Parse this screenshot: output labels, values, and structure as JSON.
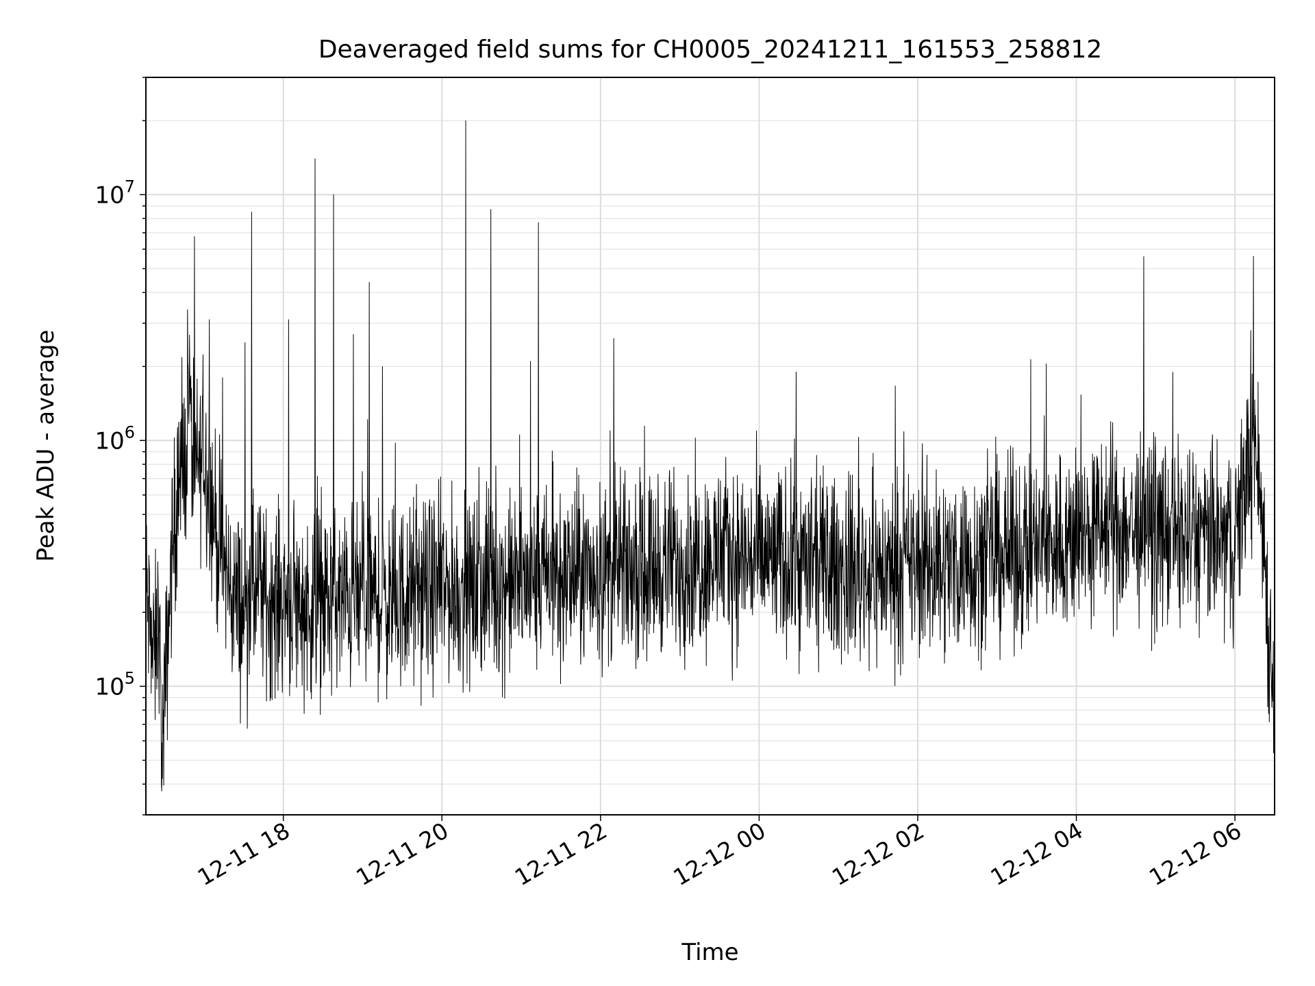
{
  "chart_data": {
    "type": "line",
    "title": "Deaveraged field sums for CH0005_20241211_161553_258812",
    "xlabel": "Time",
    "ylabel": "Peak ADU - average",
    "yscale": "log",
    "ylim": [
      30000,
      30000000
    ],
    "xlim": [
      "2024-12-11 16:16",
      "2024-12-12 06:30"
    ],
    "grid": true,
    "line_color": "#000000",
    "x_ticks": [
      {
        "t": "2024-12-11 18:00",
        "label": "12-11 18"
      },
      {
        "t": "2024-12-11 20:00",
        "label": "12-11 20"
      },
      {
        "t": "2024-12-11 22:00",
        "label": "12-11 22"
      },
      {
        "t": "2024-12-12 00:00",
        "label": "12-12 00"
      },
      {
        "t": "2024-12-12 02:00",
        "label": "12-12 02"
      },
      {
        "t": "2024-12-12 04:00",
        "label": "12-12 04"
      },
      {
        "t": "2024-12-12 06:00",
        "label": "12-12 06"
      }
    ],
    "y_ticks": [
      {
        "value": 100000,
        "base": "10",
        "exp": "5"
      },
      {
        "value": 1000000,
        "base": "10",
        "exp": "6"
      },
      {
        "value": 10000000,
        "base": "10",
        "exp": "7"
      }
    ],
    "series": [
      {
        "points": [
          [
            "2024-12-11 16:16",
            250000
          ],
          [
            "2024-12-11 16:22",
            120000
          ],
          [
            "2024-12-11 16:26",
            200000
          ],
          [
            "2024-12-11 16:28",
            47000
          ],
          [
            "2024-12-11 16:35",
            300000
          ],
          [
            "2024-12-11 16:40",
            600000
          ],
          [
            "2024-12-11 16:46",
            800000
          ],
          [
            "2024-12-11 16:48",
            1900000
          ],
          [
            "2024-12-11 16:52",
            700000
          ],
          [
            "2024-12-11 17:00",
            900000
          ],
          [
            "2024-12-11 17:10",
            400000
          ],
          [
            "2024-12-11 17:20",
            250000
          ],
          [
            "2024-12-11 17:30",
            200000
          ],
          [
            "2024-12-11 17:40",
            250000
          ],
          [
            "2024-12-11 17:50",
            220000
          ],
          [
            "2024-12-11 18:00",
            230000
          ],
          [
            "2024-12-11 18:20",
            210000
          ],
          [
            "2024-12-11 18:40",
            220000
          ],
          [
            "2024-12-11 19:00",
            230000
          ],
          [
            "2024-12-11 19:20",
            220000
          ],
          [
            "2024-12-11 19:40",
            240000
          ],
          [
            "2024-12-11 20:00",
            250000
          ],
          [
            "2024-12-11 20:20",
            240000
          ],
          [
            "2024-12-11 20:40",
            260000
          ],
          [
            "2024-12-11 21:00",
            260000
          ],
          [
            "2024-12-11 21:20",
            270000
          ],
          [
            "2024-12-11 21:40",
            280000
          ],
          [
            "2024-12-11 22:00",
            290000
          ],
          [
            "2024-12-11 22:30",
            300000
          ],
          [
            "2024-12-11 23:00",
            320000
          ],
          [
            "2024-12-11 23:30",
            340000
          ],
          [
            "2024-12-12 00:00",
            330000
          ],
          [
            "2024-12-12 00:30",
            320000
          ],
          [
            "2024-12-12 01:00",
            300000
          ],
          [
            "2024-12-12 01:30",
            290000
          ],
          [
            "2024-12-12 02:00",
            310000
          ],
          [
            "2024-12-12 02:30",
            320000
          ],
          [
            "2024-12-12 03:00",
            340000
          ],
          [
            "2024-12-12 03:30",
            360000
          ],
          [
            "2024-12-12 04:00",
            400000
          ],
          [
            "2024-12-12 04:30",
            450000
          ],
          [
            "2024-12-12 05:00",
            420000
          ],
          [
            "2024-12-12 05:30",
            400000
          ],
          [
            "2024-12-12 06:00",
            380000
          ],
          [
            "2024-12-12 06:08",
            700000
          ],
          [
            "2024-12-12 06:15",
            1000000
          ],
          [
            "2024-12-12 06:22",
            400000
          ],
          [
            "2024-12-12 06:26",
            150000
          ],
          [
            "2024-12-12 06:30",
            110000
          ]
        ]
      }
    ],
    "spikes": [
      {
        "t": "2024-12-11 17:04",
        "y": 3100000
      },
      {
        "t": "2024-12-11 17:14",
        "y": 1800000
      },
      {
        "t": "2024-12-11 17:31",
        "y": 2500000
      },
      {
        "t": "2024-12-11 17:36",
        "y": 8500000
      },
      {
        "t": "2024-12-11 18:04",
        "y": 3100000
      },
      {
        "t": "2024-12-11 18:24",
        "y": 14000000
      },
      {
        "t": "2024-12-11 18:38",
        "y": 10000000
      },
      {
        "t": "2024-12-11 18:53",
        "y": 2700000
      },
      {
        "t": "2024-12-11 19:05",
        "y": 4400000
      },
      {
        "t": "2024-12-11 19:15",
        "y": 2000000
      },
      {
        "t": "2024-12-11 20:18",
        "y": 20000000
      },
      {
        "t": "2024-12-11 20:37",
        "y": 8700000
      },
      {
        "t": "2024-12-11 21:07",
        "y": 2100000
      },
      {
        "t": "2024-12-11 21:13",
        "y": 7700000
      },
      {
        "t": "2024-12-11 22:10",
        "y": 2600000
      },
      {
        "t": "2024-12-12 00:28",
        "y": 1900000
      },
      {
        "t": "2024-12-12 04:51",
        "y": 5600000
      },
      {
        "t": "2024-12-12 06:12",
        "y": 2800000
      }
    ]
  }
}
